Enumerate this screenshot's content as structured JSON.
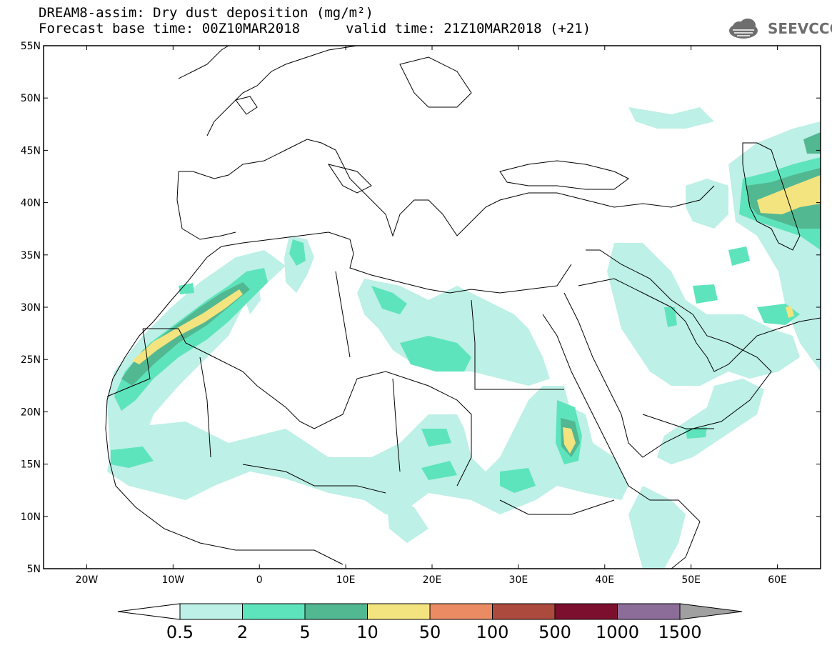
{
  "title": {
    "line1": "DREAM8-assim: Dry dust deposition (mg/m²)",
    "line2": "Forecast base time: 00Z10MAR2018",
    "valid": "valid time: 21Z10MAR2018 (+21)"
  },
  "logo": {
    "text": "SEEVCCC",
    "icon": "cloud-icon"
  },
  "lat_labels": [
    "55N",
    "50N",
    "45N",
    "40N",
    "35N",
    "30N",
    "25N",
    "20N",
    "15N",
    "10N",
    "5N"
  ],
  "lon_labels": [
    "20W",
    "10W",
    "0",
    "10E",
    "20E",
    "30E",
    "40E",
    "50E",
    "60E"
  ],
  "colorbar": {
    "labels": [
      "0.5",
      "2",
      "5",
      "10",
      "50",
      "100",
      "500",
      "1000",
      "1500"
    ],
    "colors": [
      "#bdf0e6",
      "#5ee4bc",
      "#52b891",
      "#f3e47f",
      "#eb8b64",
      "#ab4a3d",
      "#7c0f2d",
      "#8c6c99"
    ],
    "under_color": "#ffffff",
    "over_color": "#a0a0a0"
  },
  "map": {
    "lon_range": [
      -25,
      65
    ],
    "lat_range": [
      5,
      55
    ],
    "region": "North Africa, Mediterranean, Middle East"
  }
}
